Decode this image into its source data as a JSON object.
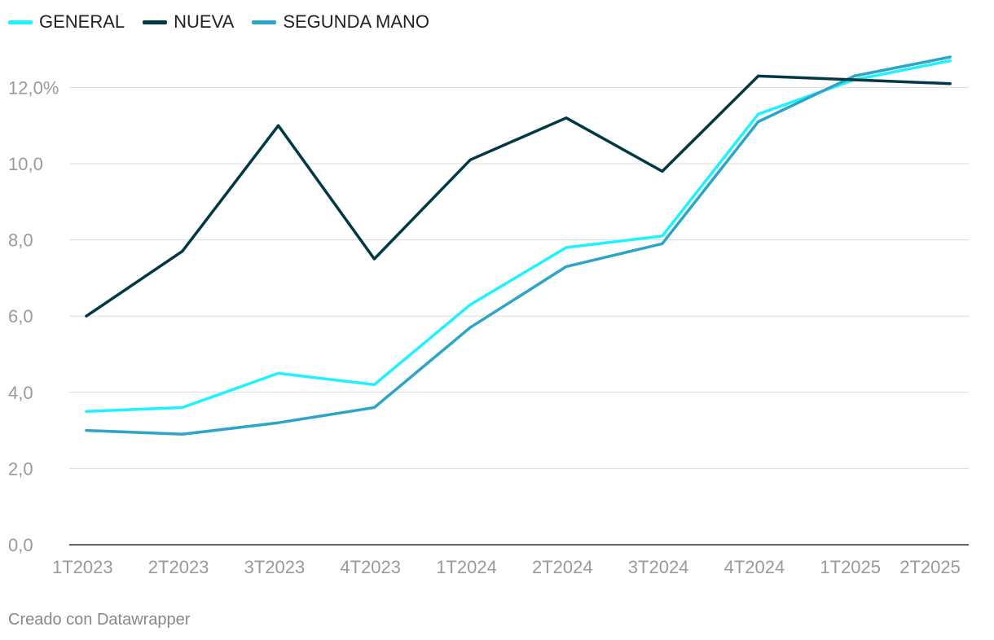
{
  "legend": [
    {
      "name": "GENERAL",
      "color": "#1ff2ff"
    },
    {
      "name": "NUEVA",
      "color": "#003843"
    },
    {
      "name": "SEGUNDA MANO",
      "color": "#2da5c9"
    }
  ],
  "credit": "Creado con Datawrapper",
  "chart_data": {
    "type": "line",
    "x": [
      "1T2023",
      "2T2023",
      "3T2023",
      "4T2023",
      "1T2024",
      "2T2024",
      "3T2024",
      "4T2024",
      "1T2025",
      "2T2025"
    ],
    "series": [
      {
        "name": "GENERAL",
        "color": "#1ff2ff",
        "values": [
          3.5,
          3.6,
          4.5,
          4.2,
          6.3,
          7.8,
          8.1,
          11.3,
          12.2,
          12.7
        ]
      },
      {
        "name": "NUEVA",
        "color": "#003843",
        "values": [
          6.0,
          7.7,
          11.0,
          7.5,
          10.1,
          11.2,
          9.8,
          12.3,
          12.2,
          12.1
        ]
      },
      {
        "name": "SEGUNDA MANO",
        "color": "#2da5c9",
        "values": [
          3.0,
          2.9,
          3.2,
          3.6,
          5.7,
          7.3,
          7.9,
          11.1,
          12.3,
          12.8
        ]
      }
    ],
    "yticks": [
      "0,0",
      "2,0",
      "4,0",
      "6,0",
      "8,0",
      "10,0",
      "12,0%"
    ],
    "ylim": [
      0,
      12.9
    ],
    "grid": true,
    "legend_position": "top-left"
  }
}
